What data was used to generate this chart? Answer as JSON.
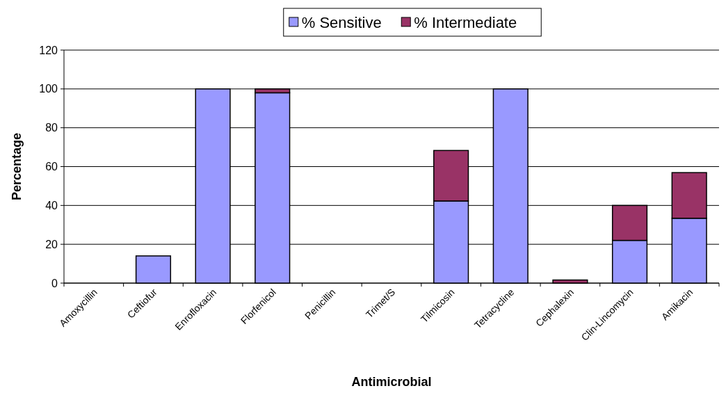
{
  "chart_data": {
    "type": "bar",
    "stacked": true,
    "xlabel": "Antimicrobial",
    "ylabel": "Percentage",
    "categories": [
      "Amoxycillin",
      "Ceftiofur",
      "Enrofloxacin",
      "Florfenicol",
      "Penicillin",
      "Trimet/S",
      "Tilmicosin",
      "Tetracycline",
      "Cephalexin",
      "Clin-Lincomycin",
      "Amikacin"
    ],
    "series": [
      {
        "name": "% Sensitive",
        "color": "#9999ff",
        "values": [
          0,
          14,
          100,
          98,
          0,
          0,
          42.3,
          100,
          0,
          22,
          33.4
        ]
      },
      {
        "name": "% Intermediate",
        "color": "#993366",
        "values": [
          0,
          0,
          0,
          2,
          0,
          0,
          26,
          0,
          1.6,
          18,
          23.5
        ]
      }
    ],
    "ylim": [
      0,
      120
    ],
    "yticks": [
      0,
      20,
      40,
      60,
      80,
      100,
      120
    ],
    "grid": "y",
    "legend": "top"
  }
}
